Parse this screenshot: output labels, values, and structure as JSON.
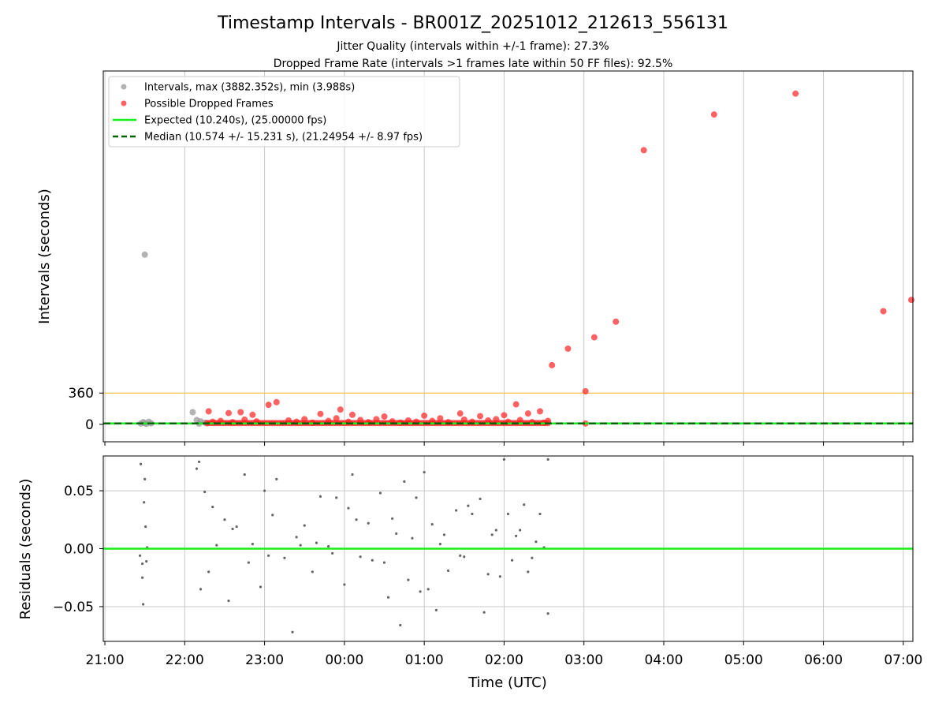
{
  "title": "Timestamp Intervals - BR001Z_20251012_212613_556131",
  "subtitle1": "Jitter Quality (intervals within +/-1 frame): 27.3%",
  "subtitle2": "Dropped Frame Rate (intervals >1 frames late within 50 FF files): 92.5%",
  "colors": {
    "intervals": "#999999",
    "dropped": "#ff2020",
    "expected": "#1aee1a",
    "median": "#006400",
    "threshold": "#ffc04a",
    "residuals": "#666666",
    "grid": "#c8c8c8"
  },
  "chart_data": [
    {
      "type": "scatter",
      "panel": "top",
      "ylabel": "Intervals (seconds)",
      "xlabel": "",
      "grid": "vertical",
      "legend_position": "top-left",
      "x_ticks": [
        "21:00",
        "22:00",
        "23:00",
        "00:00",
        "01:00",
        "02:00",
        "03:00",
        "04:00",
        "05:00",
        "06:00",
        "07:00"
      ],
      "y_ticks": [
        0,
        360
      ],
      "xlim_hours": [
        20.98,
        31.12
      ],
      "ylim": [
        -200,
        4060
      ],
      "threshold_line": 360,
      "expected_line": 10.24,
      "median_line": 10.574,
      "legend": [
        "Intervals, max (3882.352s), min (3.988s)",
        "Possible Dropped Frames",
        "Expected (10.240s), (25.00000 fps)",
        "Median (10.574 +/- 15.231 s), (21.24954 +/- 8.97 fps)"
      ],
      "series": [
        {
          "name": "Intervals, max (3882.352s), min (3.988s)",
          "points": [
            [
              21.45,
              10
            ],
            [
              21.48,
              25
            ],
            [
              21.5,
              15
            ],
            [
              21.52,
              5
            ],
            [
              21.55,
              30
            ],
            [
              21.58,
              12
            ],
            [
              21.5,
              1950
            ],
            [
              22.1,
              140
            ],
            [
              22.15,
              50
            ],
            [
              22.2,
              35
            ],
            [
              22.25,
              20
            ],
            [
              22.18,
              8
            ],
            [
              22.28,
              12
            ]
          ]
        },
        {
          "name": "Possible Dropped Frames",
          "points": [
            [
              22.3,
              150
            ],
            [
              22.55,
              130
            ],
            [
              22.7,
              140
            ],
            [
              22.85,
              110
            ],
            [
              23.05,
              225
            ],
            [
              23.15,
              255
            ],
            [
              23.7,
              120
            ],
            [
              23.95,
              170
            ],
            [
              24.1,
              110
            ],
            [
              24.5,
              90
            ],
            [
              25.0,
              100
            ],
            [
              25.45,
              125
            ],
            [
              25.7,
              95
            ],
            [
              26.0,
              105
            ],
            [
              26.15,
              230
            ],
            [
              26.3,
              125
            ],
            [
              26.45,
              150
            ],
            [
              26.6,
              680
            ],
            [
              26.8,
              870
            ],
            [
              27.02,
              380
            ],
            [
              27.02,
              10
            ],
            [
              27.13,
              1000
            ],
            [
              27.4,
              1180
            ],
            [
              27.75,
              3150
            ],
            [
              28.63,
              3560
            ],
            [
              29.65,
              3800
            ],
            [
              30.75,
              1300
            ],
            [
              31.1,
              1430
            ],
            [
              22.35,
              30
            ],
            [
              22.45,
              40
            ],
            [
              22.6,
              25
            ],
            [
              22.75,
              55
            ],
            [
              22.9,
              35
            ],
            [
              23.3,
              45
            ],
            [
              23.4,
              30
            ],
            [
              23.5,
              60
            ],
            [
              23.6,
              20
            ],
            [
              23.8,
              40
            ],
            [
              23.9,
              70
            ],
            [
              24.05,
              30
            ],
            [
              24.2,
              50
            ],
            [
              24.3,
              25
            ],
            [
              24.4,
              60
            ],
            [
              24.6,
              35
            ],
            [
              24.7,
              20
            ],
            [
              24.8,
              45
            ],
            [
              24.9,
              30
            ],
            [
              25.1,
              40
            ],
            [
              25.2,
              70
            ],
            [
              25.3,
              25
            ],
            [
              25.5,
              55
            ],
            [
              25.6,
              30
            ],
            [
              25.8,
              45
            ],
            [
              25.9,
              60
            ],
            [
              26.05,
              30
            ],
            [
              26.2,
              50
            ],
            [
              26.35,
              25
            ],
            [
              26.5,
              20
            ],
            [
              26.55,
              40
            ]
          ]
        }
      ]
    },
    {
      "type": "scatter",
      "panel": "bottom",
      "ylabel": "Residuals (seconds)",
      "xlabel": "Time (UTC)",
      "grid": "both",
      "x_ticks": [
        "21:00",
        "22:00",
        "23:00",
        "00:00",
        "01:00",
        "02:00",
        "03:00",
        "04:00",
        "05:00",
        "06:00",
        "07:00"
      ],
      "y_ticks": [
        "0.05",
        "0.00",
        "−0.05"
      ],
      "xlim_hours": [
        20.98,
        31.12
      ],
      "ylim": [
        -0.08,
        0.08
      ],
      "zero_line": 0.0,
      "series": [
        {
          "name": "",
          "points": [
            [
              21.45,
              0.073
            ],
            [
              21.47,
              -0.013
            ],
            [
              21.48,
              -0.048
            ],
            [
              21.49,
              0.04
            ],
            [
              21.5,
              0.06
            ],
            [
              21.51,
              0.019
            ],
            [
              21.52,
              -0.011
            ],
            [
              21.53,
              0.001
            ],
            [
              21.47,
              -0.025
            ],
            [
              21.44,
              -0.006
            ],
            [
              22.15,
              0.069
            ],
            [
              22.18,
              0.075
            ],
            [
              22.25,
              0.049
            ],
            [
              22.3,
              -0.02
            ],
            [
              22.4,
              0.003
            ],
            [
              22.5,
              0.025
            ],
            [
              22.55,
              -0.045
            ],
            [
              22.6,
              0.017
            ],
            [
              22.75,
              0.064
            ],
            [
              22.85,
              0.004
            ],
            [
              22.95,
              -0.033
            ],
            [
              23.0,
              0.05
            ],
            [
              23.05,
              -0.006
            ],
            [
              23.15,
              0.06
            ],
            [
              23.25,
              -0.008
            ],
            [
              23.35,
              -0.072
            ],
            [
              23.4,
              0.01
            ],
            [
              23.5,
              0.02
            ],
            [
              23.6,
              -0.02
            ],
            [
              23.7,
              0.045
            ],
            [
              23.8,
              0.002
            ],
            [
              23.9,
              0.044
            ],
            [
              24.0,
              -0.031
            ],
            [
              24.05,
              0.035
            ],
            [
              24.1,
              0.064
            ],
            [
              24.2,
              -0.007
            ],
            [
              24.3,
              0.022
            ],
            [
              24.45,
              0.048
            ],
            [
              24.5,
              -0.012
            ],
            [
              24.6,
              0.026
            ],
            [
              24.7,
              -0.066
            ],
            [
              24.75,
              0.058
            ],
            [
              24.8,
              -0.027
            ],
            [
              24.9,
              0.044
            ],
            [
              25.0,
              0.066
            ],
            [
              25.05,
              -0.035
            ],
            [
              25.1,
              0.021
            ],
            [
              25.2,
              0.004
            ],
            [
              25.3,
              -0.019
            ],
            [
              25.4,
              0.033
            ],
            [
              25.5,
              -0.007
            ],
            [
              25.6,
              0.03
            ],
            [
              25.7,
              0.043
            ],
            [
              25.8,
              -0.022
            ],
            [
              25.9,
              0.016
            ],
            [
              26.0,
              0.077
            ],
            [
              26.05,
              0.03
            ],
            [
              26.1,
              -0.01
            ],
            [
              26.2,
              0.016
            ],
            [
              26.3,
              -0.02
            ],
            [
              26.4,
              0.006
            ],
            [
              26.5,
              0.001
            ],
            [
              26.55,
              0.077
            ],
            [
              26.55,
              -0.056
            ],
            [
              22.2,
              -0.035
            ],
            [
              22.35,
              0.036
            ],
            [
              22.65,
              0.019
            ],
            [
              22.8,
              -0.012
            ],
            [
              23.1,
              0.029
            ],
            [
              23.45,
              0.003
            ],
            [
              23.65,
              0.005
            ],
            [
              23.85,
              -0.004
            ],
            [
              24.15,
              0.025
            ],
            [
              24.35,
              -0.01
            ],
            [
              24.55,
              -0.042
            ],
            [
              24.65,
              0.013
            ],
            [
              24.85,
              0.009
            ],
            [
              24.95,
              -0.037
            ],
            [
              25.15,
              -0.053
            ],
            [
              25.25,
              0.012
            ],
            [
              25.45,
              -0.006
            ],
            [
              25.55,
              0.037
            ],
            [
              25.75,
              -0.055
            ],
            [
              25.85,
              0.012
            ],
            [
              25.95,
              -0.024
            ],
            [
              26.15,
              0.011
            ],
            [
              26.25,
              0.038
            ],
            [
              26.35,
              -0.008
            ],
            [
              26.45,
              0.03
            ]
          ]
        }
      ]
    }
  ]
}
